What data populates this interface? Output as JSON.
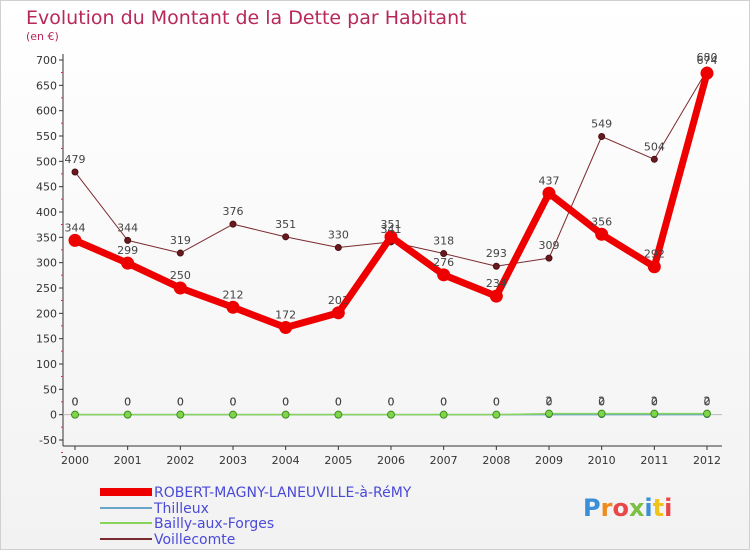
{
  "chart_data": {
    "type": "line",
    "title": "Evolution du Montant de la Dette par Habitant",
    "subtitle": "(en €)",
    "categories": [
      "2000",
      "2001",
      "2002",
      "2003",
      "2004",
      "2005",
      "2006",
      "2007",
      "2008",
      "2009",
      "2010",
      "2011",
      "2012"
    ],
    "ylim": [
      -50,
      700
    ],
    "yticks": [
      -50,
      0,
      50,
      100,
      150,
      200,
      250,
      300,
      350,
      400,
      450,
      500,
      550,
      600,
      650,
      700
    ],
    "grid": false,
    "legend_position": "bottom-left",
    "series": [
      {
        "name": "ROBERT-MAGNY-LANEUVILLE-à-RéMY",
        "color": "#ee0000",
        "values": [
          344,
          299,
          250,
          212,
          172,
          201,
          351,
          276,
          234,
          437,
          356,
          292,
          674
        ]
      },
      {
        "name": "Thilleux",
        "color": "#6aa6c8",
        "values": [
          0,
          0,
          0,
          0,
          0,
          0,
          0,
          0,
          0,
          0,
          0,
          0,
          0
        ]
      },
      {
        "name": "Bailly-aux-Forges",
        "color": "#88d45a",
        "values": [
          0,
          0,
          0,
          0,
          0,
          0,
          0,
          0,
          0,
          2,
          2,
          2,
          2
        ]
      },
      {
        "name": "Voillecomte",
        "color": "#7b2a2f",
        "values": [
          479,
          344,
          319,
          376,
          351,
          330,
          341,
          318,
          293,
          309,
          549,
          504,
          680
        ]
      }
    ],
    "labels": {
      "ROBERT-MAGNY-LANEUVILLE-à-RéMY": [
        "344",
        "299",
        "250",
        "212",
        "172",
        "201",
        "351",
        "276",
        "234",
        "437",
        "356",
        "292",
        "674"
      ],
      "Thilleux": [
        "0",
        "0",
        "0",
        "0",
        "0",
        "0",
        "0",
        "0",
        "0",
        "0",
        "0",
        "0",
        "0"
      ],
      "Bailly-aux-Forges": [
        "0",
        "0",
        "0",
        "0",
        "0",
        "0",
        "0",
        "0",
        "0",
        "2",
        "2",
        "2",
        "2"
      ],
      "Voillecomte": [
        "479",
        "344",
        "319",
        "376",
        "351",
        "330",
        "341",
        "318",
        "293",
        "309",
        "549",
        "504",
        "680"
      ]
    }
  },
  "logo": {
    "text": "Proxiti",
    "colors": [
      "#3a8fd8",
      "#f08a1c",
      "#e8484a",
      "#7ac043",
      "#3a8fd8",
      "#f0c21c",
      "#e8484a"
    ]
  }
}
